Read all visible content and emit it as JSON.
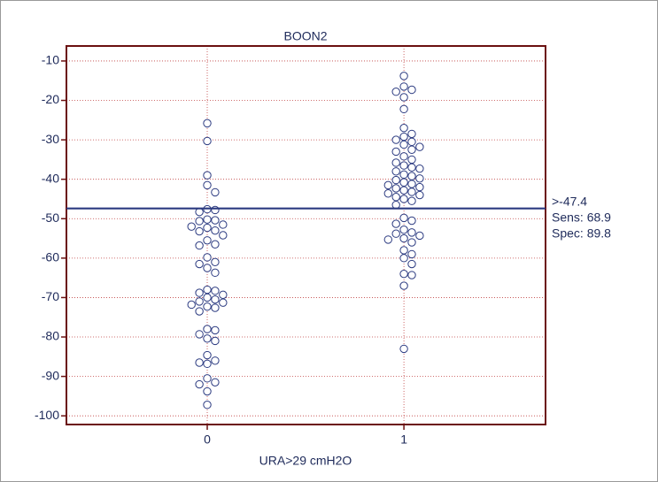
{
  "chart_data": {
    "type": "dot",
    "title": "BOON2",
    "x_label": "URA>29 cmH2O",
    "x": [
      0,
      1
    ],
    "xticks": [
      0,
      1
    ],
    "xlim": [
      -0.716,
      1.72
    ],
    "ylim": [
      -102.2,
      -6.2
    ],
    "yticks": [
      -10,
      -20,
      -30,
      -40,
      -50,
      -60,
      -70,
      -80,
      -90,
      -100
    ],
    "grid": true,
    "color": "#2b3a80",
    "values": [
      [
        -25.8,
        -30.3,
        -39,
        -41.5,
        -43.3,
        -47.6,
        -47.8,
        -48.3,
        -50.2,
        -50.4,
        -50.6,
        -51.5,
        -52,
        -52.3,
        -53,
        -53.2,
        -54.2,
        -55.5,
        -56.5,
        -56.8,
        -59.8,
        -61,
        -61.5,
        -62.5,
        -63.7,
        -68,
        -68.3,
        -68.8,
        -69.3,
        -70,
        -70.5,
        -71,
        -71.3,
        -71.8,
        -72.3,
        -72.6,
        -73.5,
        -78,
        -78.3,
        -79.3,
        -80.4,
        -81,
        -84.6,
        -86,
        -86.5,
        -86.8,
        -90.5,
        -91.5,
        -92,
        -93.8,
        -97.2
      ],
      [
        -13.8,
        -16.5,
        -17.3,
        -17.8,
        -19.2,
        -22.2,
        -27,
        -28.5,
        -29.2,
        -30,
        -30.5,
        -31.2,
        -31.8,
        -32.5,
        -33,
        -34.2,
        -35,
        -35.8,
        -36.5,
        -37,
        -37.3,
        -38,
        -38.8,
        -39.2,
        -39.8,
        -40.2,
        -40.8,
        -41.2,
        -41.5,
        -42,
        -42.3,
        -42.8,
        -43.2,
        -43.6,
        -44,
        -44.5,
        -45,
        -45.5,
        -46.5,
        -49.8,
        -50.5,
        -51.3,
        -52.8,
        -53.5,
        -53.8,
        -54.3,
        -55,
        -55.3,
        -56,
        -58,
        -59,
        -60,
        -61.5,
        -64,
        -64.3,
        -67,
        -83
      ]
    ],
    "cutoff": {
      "value": -47.4,
      "label": ">-47.4"
    },
    "annotations": [
      "Sens: 68.9",
      "Spec: 89.8"
    ]
  }
}
